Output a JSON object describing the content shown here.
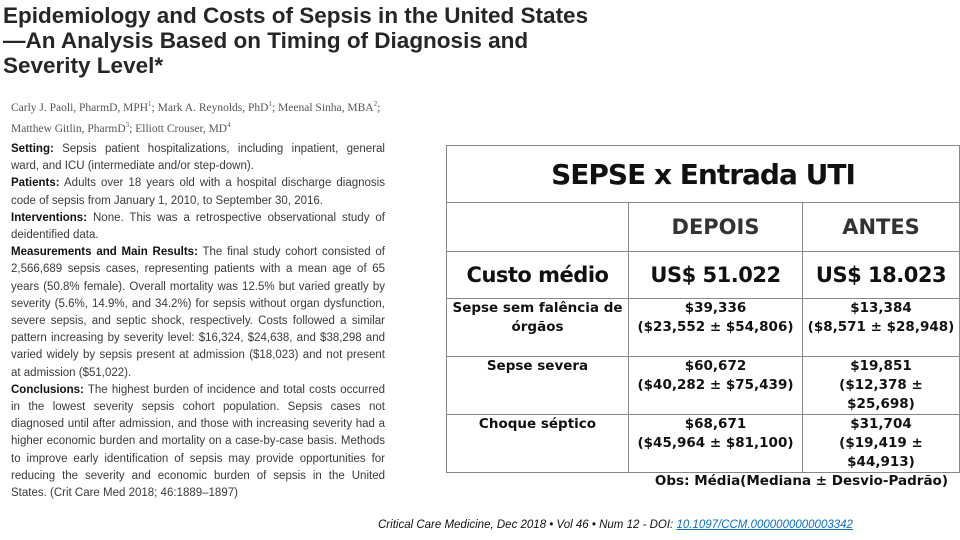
{
  "paper": {
    "title": "Epidemiology and Costs of Sepsis in the United States—An Analysis Based on Timing of Diagnosis and Severity Level*",
    "authors": [
      {
        "name": "Carly J. Paoli, PharmD, MPH",
        "sup": "1",
        "sep": "; "
      },
      {
        "name": "Mark A. Reynolds, PhD",
        "sup": "1",
        "sep": "; "
      },
      {
        "name": "Meenal Sinha, MBA",
        "sup": "2",
        "sep": ";"
      },
      {
        "name": "Matthew Gitlin, PharmD",
        "sup": "3",
        "sep": "; "
      },
      {
        "name": "Elliott Crouser, MD",
        "sup": "4",
        "sep": ""
      }
    ],
    "abstract": [
      {
        "label": "Setting:",
        "text": "Sepsis patient hospitalizations, including inpatient, general ward, and ICU (intermediate and/or step-down)."
      },
      {
        "label": "Patients:",
        "text": "Adults over 18 years old with a hospital discharge diagnosis code of sepsis from January 1, 2010, to September 30, 2016."
      },
      {
        "label": "Interventions:",
        "text": "None. This was a retrospective observational study of deidentified data."
      },
      {
        "label": "Measurements and Main Results:",
        "text": "The final study cohort consisted of 2,566,689 sepsis cases, representing patients with a mean age of 65 years (50.8% female). Overall mortality was 12.5% but varied greatly by severity (5.6%, 14.9%, and 34.2%) for sepsis without organ dysfunction, severe sepsis, and septic shock, respectively. Costs followed a similar pattern increasing by severity level: $16,324, $24,638, and $38,298 and varied widely by sepsis present at admission ($18,023) and not present at admission ($51,022)."
      },
      {
        "label": "Conclusions:",
        "text": "The highest burden of incidence and total costs occurred in the lowest severity sepsis cohort population. Sepsis cases not diagnosed until after admission, and those with increasing severity had a higher economic burden and mortality on a case-by-case basis. Methods to improve early identification of sepsis may provide opportunities for reducing the severity and economic burden of sepsis in the United States. (Crit Care Med 2018; 46:1889–1897)"
      }
    ],
    "citation": {
      "text": "Critical Care Medicine, Dec 2018 • Vol 46 • Num 12 - DOI: ",
      "doi": "10.1097/CCM.0000000000003342"
    }
  },
  "table": {
    "title": "SEPSE x Entrada UTI",
    "headers": [
      "",
      "DEPOIS",
      "ANTES"
    ],
    "cost_row": {
      "label": "Custo médio",
      "depois": "US$ 51.022",
      "antes": "US$ 18.023"
    },
    "rows": [
      {
        "label": "Sepse sem falência de órgãos",
        "depois_mean": "$39,336",
        "depois_range": "($23,552 ± $54,806)",
        "antes_mean": "$13,384",
        "antes_range": "($8,571 ± $28,948)"
      },
      {
        "label": "Sepse severa",
        "depois_mean": "$60,672",
        "depois_range": "($40,282 ± $75,439)",
        "antes_mean": "$19,851",
        "antes_range": "($12,378 ± $25,698)"
      },
      {
        "label": "Choque séptico",
        "depois_mean": "$68,671",
        "depois_range": "($45,964 ± $81,100)",
        "antes_mean": "$31,704",
        "antes_range": "($19,419 ± $44,913)"
      }
    ],
    "note": "Obs: Média(Mediana ± Desvio-Padrão)"
  }
}
